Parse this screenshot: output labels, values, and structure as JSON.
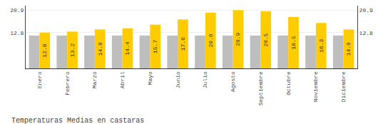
{
  "chart_data": {
    "type": "bar",
    "title": "Temperaturas Medias en castaras",
    "categories": [
      "Enero",
      "Febrero",
      "Marzo",
      "Abril",
      "Mayo",
      "Junio",
      "Julio",
      "Agosto",
      "Septiembre",
      "Octubre",
      "Noviembre",
      "Diciembre"
    ],
    "series": [
      {
        "color": "#BEBEBE",
        "values": [
          11.8,
          11.8,
          11.8,
          11.8,
          11.8,
          11.8,
          11.8,
          11.8,
          11.8,
          11.8,
          11.8,
          11.8
        ]
      },
      {
        "color": "#FFCC00",
        "values": [
          12.8,
          13.2,
          14.0,
          14.4,
          15.7,
          17.6,
          20.0,
          20.9,
          20.5,
          18.5,
          16.3,
          14.0
        ],
        "value_labels": [
          "12.8",
          "13.2",
          "14.0",
          "14.4",
          "15.7",
          "17.6",
          "20.0",
          "20.9",
          "20.5",
          "18.5",
          "16.3",
          "14.0"
        ],
        "data_labels": true
      }
    ],
    "ylim": [
      0,
      22.5
    ],
    "yticks": [
      12.8,
      20.9
    ],
    "y2lim": [
      0,
      22.5
    ],
    "y2ticks": [
      12.8,
      20.9
    ],
    "grid": true
  }
}
